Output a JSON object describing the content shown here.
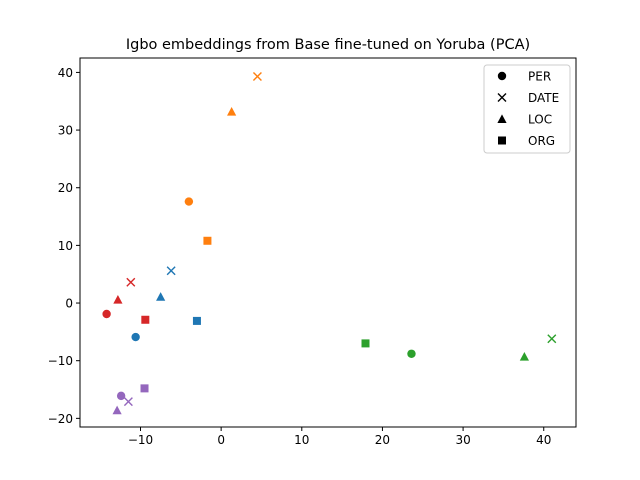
{
  "chart_data": {
    "type": "scatter",
    "title": "Igbo embeddings from Base fine-tuned on Yoruba (PCA)",
    "xlabel": "",
    "ylabel": "",
    "xlim": [
      -17.5,
      44
    ],
    "ylim": [
      -21.5,
      42.5
    ],
    "xticks": [
      -10,
      0,
      10,
      20,
      30,
      40
    ],
    "yticks": [
      -20,
      -10,
      0,
      10,
      20,
      30,
      40
    ],
    "grid": false,
    "legend_position": "top-right",
    "legend": [
      {
        "label": "PER",
        "marker": "circle"
      },
      {
        "label": "DATE",
        "marker": "x"
      },
      {
        "label": "LOC",
        "marker": "triangle"
      },
      {
        "label": "ORG",
        "marker": "square"
      }
    ],
    "colors": [
      "#1f77b4",
      "#ff7f0e",
      "#2ca02c",
      "#d62728",
      "#9467bd"
    ],
    "points": [
      {
        "group": 0,
        "marker": "circle",
        "x": -10.6,
        "y": -5.9
      },
      {
        "group": 0,
        "marker": "x",
        "x": -6.2,
        "y": 5.6
      },
      {
        "group": 0,
        "marker": "triangle",
        "x": -7.5,
        "y": 1.1
      },
      {
        "group": 0,
        "marker": "square",
        "x": -3.0,
        "y": -3.1
      },
      {
        "group": 1,
        "marker": "circle",
        "x": -4.0,
        "y": 17.6
      },
      {
        "group": 1,
        "marker": "x",
        "x": 4.5,
        "y": 39.3
      },
      {
        "group": 1,
        "marker": "triangle",
        "x": 1.3,
        "y": 33.2
      },
      {
        "group": 1,
        "marker": "square",
        "x": -1.7,
        "y": 10.8
      },
      {
        "group": 2,
        "marker": "circle",
        "x": 23.6,
        "y": -8.8
      },
      {
        "group": 2,
        "marker": "x",
        "x": 41.0,
        "y": -6.2
      },
      {
        "group": 2,
        "marker": "triangle",
        "x": 37.6,
        "y": -9.3
      },
      {
        "group": 2,
        "marker": "square",
        "x": 17.9,
        "y": -7.0
      },
      {
        "group": 3,
        "marker": "circle",
        "x": -14.2,
        "y": -1.9
      },
      {
        "group": 3,
        "marker": "x",
        "x": -11.2,
        "y": 3.6
      },
      {
        "group": 3,
        "marker": "triangle",
        "x": -12.8,
        "y": 0.6
      },
      {
        "group": 3,
        "marker": "square",
        "x": -9.4,
        "y": -2.9
      },
      {
        "group": 4,
        "marker": "circle",
        "x": -12.4,
        "y": -16.1
      },
      {
        "group": 4,
        "marker": "x",
        "x": -11.5,
        "y": -17.1
      },
      {
        "group": 4,
        "marker": "triangle",
        "x": -12.9,
        "y": -18.6
      },
      {
        "group": 4,
        "marker": "square",
        "x": -9.5,
        "y": -14.8
      }
    ]
  }
}
